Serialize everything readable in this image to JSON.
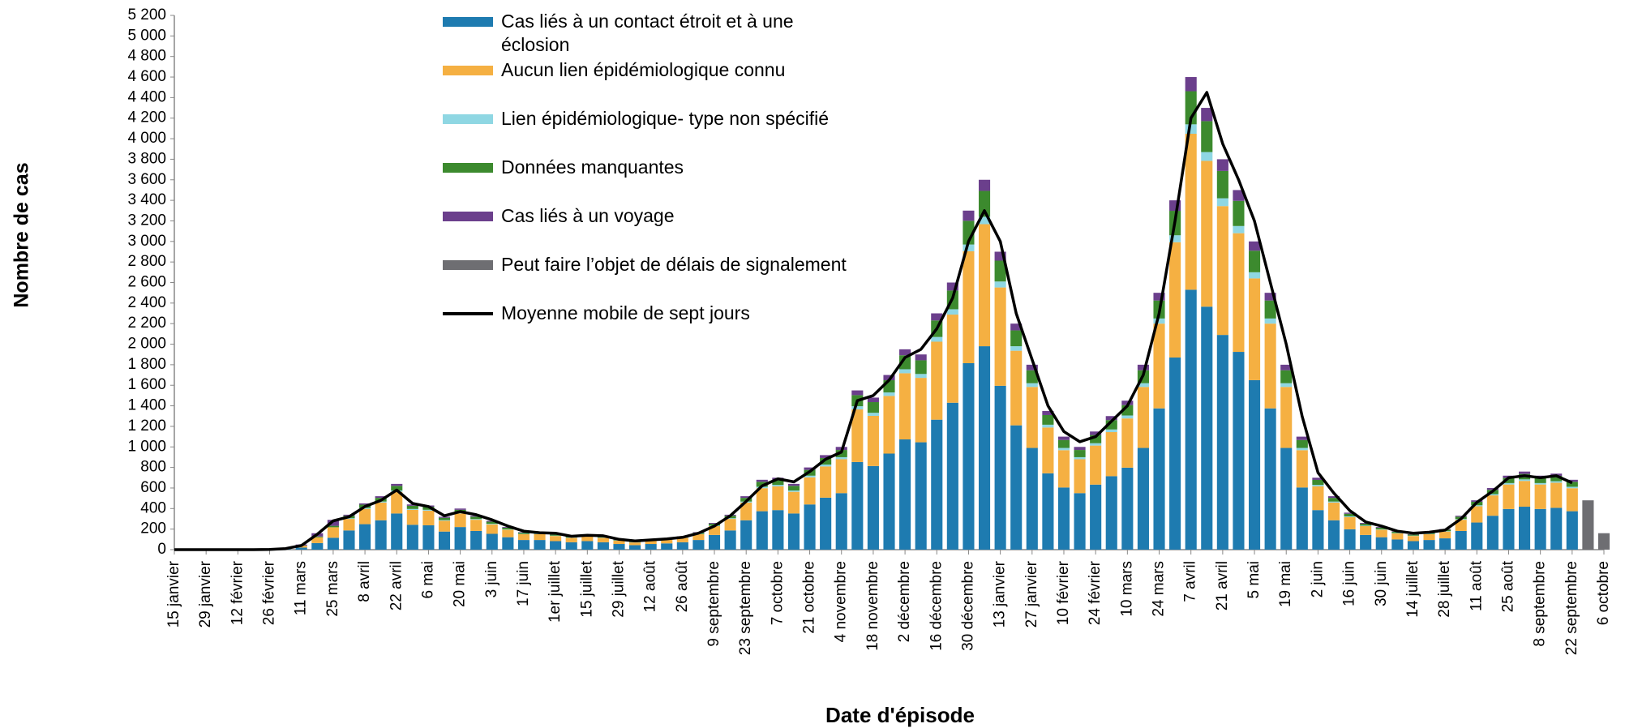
{
  "chart_data": {
    "type": "bar",
    "stacked": true,
    "y_label": "Nombre de cas",
    "x_label": "Date d'épisode",
    "categories": [
      "15 janvier",
      null,
      "29 janvier",
      null,
      "12 février",
      null,
      "26 février",
      null,
      "11 mars",
      null,
      "25 mars",
      null,
      "8 avril",
      null,
      "22 avril",
      null,
      "6 mai",
      null,
      "20 mai",
      null,
      "3 juin",
      null,
      "17 juin",
      null,
      "1er juillet",
      null,
      "15 juillet",
      null,
      "29 juillet",
      null,
      "12 août",
      null,
      "26 août",
      null,
      "9 septembre",
      null,
      "23 septembre",
      null,
      "7 octobre",
      null,
      "21 octobre",
      null,
      "4 novembre",
      null,
      "18 novembre",
      null,
      "2 décembre",
      null,
      "16 décembre",
      null,
      "30 décembre",
      null,
      "13 janvier",
      null,
      "27 janvier",
      null,
      "10 février",
      null,
      "24 février",
      null,
      "10 mars",
      null,
      "24 mars",
      null,
      "7 avril",
      null,
      "21 avril",
      null,
      "5 mai",
      null,
      "19 mai",
      null,
      "2 juin",
      null,
      "16 juin",
      null,
      "30 juin",
      null,
      "14 juillet",
      null,
      "28 juillet",
      null,
      "11 août",
      null,
      "25 août",
      null,
      "8 septembre",
      null,
      "22 septembre",
      null,
      "6 octobre"
    ],
    "series": [
      {
        "name": "Cas liés à un contact étroit et à une éclosion",
        "color": "#1e7bb0",
        "values": [
          0,
          0,
          0,
          0,
          0,
          0,
          1,
          4,
          20,
          64,
          116,
          187,
          248,
          286,
          352,
          242,
          237,
          176,
          220,
          182,
          154,
          121,
          94,
          94,
          83,
          72,
          83,
          72,
          55,
          44,
          55,
          61,
          72,
          94,
          143,
          187,
          286,
          374,
          385,
          352,
          440,
          506,
          550,
          853,
          814,
          935,
          1073,
          1045,
          1265,
          1430,
          1815,
          1980,
          1595,
          1210,
          990,
          743,
          605,
          550,
          633,
          715,
          798,
          990,
          1375,
          1870,
          2530,
          2365,
          2090,
          1925,
          1650,
          1375,
          990,
          605,
          385,
          286,
          198,
          143,
          121,
          99,
          83,
          94,
          110,
          182,
          264,
          330,
          396,
          418,
          396,
          407,
          374,
          0,
          0
        ]
      },
      {
        "name": "Aucun lien épidémiologique connu",
        "color": "#f5b042",
        "values": [
          0,
          0,
          0,
          0,
          0,
          0,
          1,
          3,
          18,
          56,
          102,
          112,
          149,
          172,
          211,
          145,
          142,
          106,
          132,
          109,
          92,
          73,
          56,
          56,
          50,
          43,
          50,
          43,
          33,
          26,
          33,
          36,
          43,
          56,
          86,
          112,
          172,
          224,
          231,
          211,
          264,
          304,
          330,
          512,
          488,
          561,
          644,
          627,
          759,
          858,
          1089,
          1188,
          957,
          726,
          594,
          446,
          363,
          330,
          380,
          429,
          479,
          594,
          825,
          1122,
          1518,
          1419,
          1254,
          1155,
          990,
          825,
          594,
          363,
          231,
          172,
          119,
          86,
          73,
          59,
          50,
          56,
          66,
          109,
          158,
          198,
          238,
          251,
          238,
          244,
          224,
          0,
          0
        ]
      },
      {
        "name": "Lien épidémiologique- type non spécifié",
        "color": "#8fd7e3",
        "values": [
          0,
          0,
          0,
          0,
          0,
          0,
          0,
          0,
          0,
          0,
          0,
          7,
          9,
          10,
          13,
          9,
          9,
          6,
          8,
          7,
          6,
          4,
          3,
          3,
          3,
          3,
          3,
          3,
          2,
          2,
          2,
          2,
          3,
          3,
          5,
          7,
          10,
          14,
          14,
          13,
          16,
          18,
          20,
          31,
          30,
          34,
          39,
          38,
          46,
          52,
          66,
          72,
          58,
          44,
          36,
          27,
          22,
          20,
          23,
          26,
          29,
          36,
          50,
          68,
          92,
          86,
          76,
          70,
          60,
          50,
          36,
          22,
          14,
          10,
          7,
          5,
          4,
          4,
          3,
          3,
          4,
          7,
          10,
          12,
          14,
          15,
          14,
          15,
          14,
          0,
          0
        ]
      },
      {
        "name": "Données manquantes",
        "color": "#3c8a2e",
        "values": [
          0,
          0,
          0,
          0,
          0,
          0,
          0,
          1,
          2,
          8,
          14,
          24,
          32,
          36,
          45,
          31,
          30,
          22,
          28,
          23,
          20,
          15,
          12,
          12,
          10,
          9,
          10,
          9,
          7,
          6,
          7,
          8,
          9,
          12,
          18,
          24,
          36,
          48,
          49,
          45,
          56,
          64,
          70,
          108,
          104,
          119,
          136,
          133,
          161,
          182,
          231,
          252,
          203,
          154,
          126,
          94,
          77,
          70,
          80,
          91,
          101,
          126,
          175,
          238,
          322,
          301,
          266,
          245,
          210,
          175,
          126,
          77,
          49,
          36,
          25,
          18,
          15,
          13,
          10,
          12,
          14,
          23,
          34,
          42,
          50,
          53,
          50,
          52,
          48,
          0,
          0
        ]
      },
      {
        "name": "Cas liés à un voyage",
        "color": "#6b3f8c",
        "values": [
          0,
          0,
          0,
          0,
          0,
          0,
          0,
          2,
          10,
          32,
          58,
          10,
          12,
          16,
          19,
          13,
          12,
          10,
          12,
          9,
          8,
          7,
          5,
          5,
          4,
          3,
          4,
          3,
          3,
          2,
          3,
          3,
          3,
          5,
          8,
          10,
          16,
          20,
          21,
          19,
          24,
          28,
          30,
          46,
          44,
          51,
          58,
          57,
          69,
          78,
          99,
          108,
          87,
          66,
          54,
          40,
          33,
          30,
          34,
          39,
          43,
          54,
          75,
          102,
          138,
          129,
          114,
          105,
          90,
          75,
          54,
          33,
          21,
          16,
          11,
          8,
          7,
          5,
          4,
          5,
          6,
          9,
          14,
          18,
          22,
          23,
          22,
          22,
          20,
          0,
          0
        ]
      },
      {
        "name": "Peut faire l’objet de délais de signalement",
        "color": "#6e6e72",
        "values": [
          0,
          0,
          0,
          0,
          0,
          0,
          0,
          0,
          0,
          0,
          0,
          0,
          0,
          0,
          0,
          0,
          0,
          0,
          0,
          0,
          0,
          0,
          0,
          0,
          0,
          0,
          0,
          0,
          0,
          0,
          0,
          0,
          0,
          0,
          0,
          0,
          0,
          0,
          0,
          0,
          0,
          0,
          0,
          0,
          0,
          0,
          0,
          0,
          0,
          0,
          0,
          0,
          0,
          0,
          0,
          0,
          0,
          0,
          0,
          0,
          0,
          0,
          0,
          0,
          0,
          0,
          0,
          0,
          0,
          0,
          0,
          0,
          0,
          0,
          0,
          0,
          0,
          0,
          0,
          0,
          0,
          0,
          0,
          0,
          0,
          0,
          0,
          0,
          0,
          480,
          160
        ]
      },
      {
        "name": "Moyenne mobile de sept jours",
        "type": "line",
        "color": "#000000",
        "values": [
          0,
          0,
          0,
          0,
          0,
          0,
          2,
          10,
          40,
          150,
          280,
          320,
          420,
          480,
          580,
          450,
          420,
          330,
          370,
          340,
          290,
          230,
          180,
          165,
          160,
          130,
          140,
          135,
          100,
          85,
          95,
          105,
          120,
          160,
          230,
          330,
          470,
          620,
          690,
          660,
          760,
          880,
          950,
          1450,
          1500,
          1650,
          1870,
          1950,
          2150,
          2450,
          3000,
          3300,
          3000,
          2300,
          1850,
          1400,
          1150,
          1050,
          1100,
          1250,
          1400,
          1700,
          2300,
          3200,
          4200,
          4450,
          3950,
          3600,
          3200,
          2600,
          2000,
          1300,
          750,
          550,
          380,
          270,
          230,
          180,
          160,
          170,
          190,
          300,
          460,
          570,
          700,
          720,
          700,
          720,
          650,
          null,
          null
        ]
      }
    ],
    "ylim": [
      0,
      5200
    ],
    "yticks": [
      0,
      200,
      400,
      600,
      800,
      {
        "value": 1000,
        "label": "1 000"
      },
      {
        "value": 1200,
        "label": "1 200"
      },
      {
        "value": 1400,
        "label": "1 400"
      },
      {
        "value": 1600,
        "label": "1 600"
      },
      {
        "value": 1800,
        "label": "1 800"
      },
      {
        "value": 2000,
        "label": "2 000"
      },
      {
        "value": 2200,
        "label": "2 200"
      },
      {
        "value": 2400,
        "label": "2 400"
      },
      {
        "value": 2600,
        "label": "2 600"
      },
      {
        "value": 2800,
        "label": "2 800"
      },
      {
        "value": 3000,
        "label": "3 000"
      },
      {
        "value": 3200,
        "label": "3 200"
      },
      {
        "value": 3400,
        "label": "3 400"
      },
      {
        "value": 3600,
        "label": "3 600"
      },
      {
        "value": 3800,
        "label": "3 800"
      },
      {
        "value": 4000,
        "label": "4 000"
      },
      {
        "value": 4200,
        "label": "4 200"
      },
      {
        "value": 4400,
        "label": "4 400"
      },
      {
        "value": 4600,
        "label": "4 600"
      },
      {
        "value": 4800,
        "label": "4 800"
      },
      {
        "value": 5000,
        "label": "5 000"
      },
      {
        "value": 5200,
        "label": "5 200"
      }
    ],
    "grid": false
  }
}
